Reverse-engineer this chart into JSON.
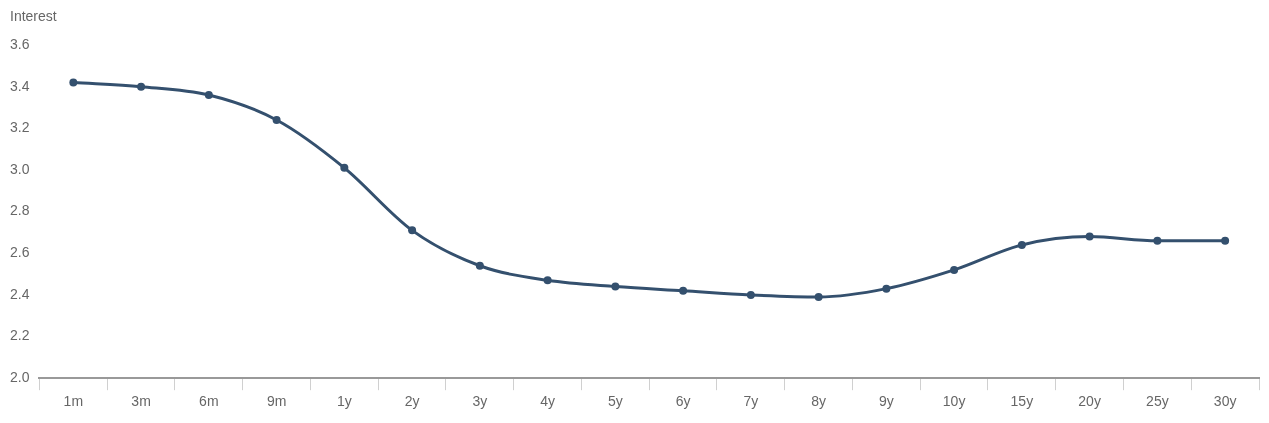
{
  "chart_data": {
    "type": "line",
    "ylabel": "Interest",
    "categories": [
      "1m",
      "3m",
      "6m",
      "9m",
      "1y",
      "2y",
      "3y",
      "4y",
      "5y",
      "6y",
      "7y",
      "8y",
      "9y",
      "10y",
      "15y",
      "20y",
      "25y",
      "30y"
    ],
    "series": [
      {
        "color": "#34506e",
        "values": [
          3.42,
          3.4,
          3.36,
          3.24,
          3.01,
          2.71,
          2.54,
          2.47,
          2.44,
          2.42,
          2.4,
          2.39,
          2.43,
          2.52,
          2.64,
          2.68,
          2.66,
          2.66
        ]
      }
    ],
    "ylim": [
      2.0,
      3.6
    ],
    "yticks": [
      {
        "value": 2,
        "label": "2.0"
      },
      2.2,
      2.4,
      2.6,
      2.8,
      {
        "value": 3,
        "label": "3.0"
      },
      3.2,
      3.4,
      3.6
    ],
    "grid": false,
    "legend": false,
    "marker": "circle",
    "line_style": "solid"
  }
}
